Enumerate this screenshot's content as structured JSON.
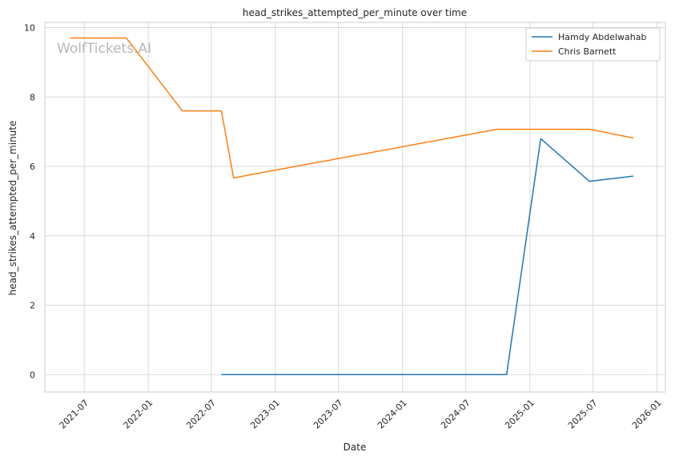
{
  "chart_data": {
    "type": "line",
    "title": "head_strikes_attempted_per_minute over time",
    "xlabel": "Date",
    "ylabel": "head_strikes_attempted_per_minute",
    "watermark": "WolfTickets.AI",
    "x_axis_type": "date",
    "xlim": [
      "2021-03-10",
      "2026-01-25"
    ],
    "ylim": [
      -0.5,
      10.15
    ],
    "x_ticks": [
      "2021-07",
      "2022-01",
      "2022-07",
      "2023-01",
      "2023-07",
      "2024-01",
      "2024-07",
      "2025-01",
      "2025-07",
      "2026-01"
    ],
    "x_tick_dates": [
      "2021-07-01",
      "2022-01-01",
      "2022-07-01",
      "2023-01-01",
      "2023-07-01",
      "2024-01-01",
      "2024-07-01",
      "2025-01-01",
      "2025-07-01",
      "2026-01-01"
    ],
    "y_ticks": [
      0,
      2,
      4,
      6,
      8,
      10
    ],
    "grid": true,
    "legend_position": "top-right",
    "series": [
      {
        "name": "Hamdy Abdelwahab",
        "color": "#1f77b4",
        "points": [
          {
            "x": "2022-07-30",
            "y": 0.0
          },
          {
            "x": "2024-10-26",
            "y": 0.0
          },
          {
            "x": "2025-02-01",
            "y": 6.8
          },
          {
            "x": "2025-06-21",
            "y": 5.57
          },
          {
            "x": "2025-10-25",
            "y": 5.72
          }
        ]
      },
      {
        "name": "Chris Barnett",
        "color": "#ff7f0e",
        "points": [
          {
            "x": "2021-05-22",
            "y": 9.7
          },
          {
            "x": "2021-10-30",
            "y": 9.7
          },
          {
            "x": "2022-04-09",
            "y": 7.6
          },
          {
            "x": "2022-07-30",
            "y": 7.6
          },
          {
            "x": "2022-09-03",
            "y": 5.67
          },
          {
            "x": "2024-09-28",
            "y": 7.07
          },
          {
            "x": "2025-06-21",
            "y": 7.07
          },
          {
            "x": "2025-10-25",
            "y": 6.82
          }
        ]
      }
    ]
  }
}
